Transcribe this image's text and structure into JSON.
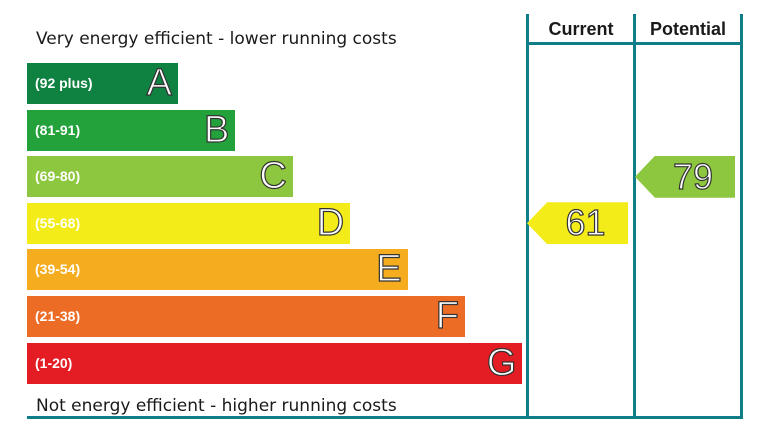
{
  "captions": {
    "top": "Very energy efficient - lower running costs",
    "bottom": "Not energy efficient - higher running costs"
  },
  "columns": {
    "current": "Current",
    "potential": "Potential"
  },
  "chart_data": {
    "type": "bar",
    "bands": [
      {
        "letter": "A",
        "range": "(92 plus)",
        "color": "#0f8140"
      },
      {
        "letter": "B",
        "range": "(81-91)",
        "color": "#23a23b"
      },
      {
        "letter": "C",
        "range": "(69-80)",
        "color": "#8dc63f"
      },
      {
        "letter": "D",
        "range": "(55-68)",
        "color": "#f3ec18"
      },
      {
        "letter": "E",
        "range": "(39-54)",
        "color": "#f5ac1f"
      },
      {
        "letter": "F",
        "range": "(21-38)",
        "color": "#ec6b25"
      },
      {
        "letter": "G",
        "range": "(1-20)",
        "color": "#e31d23"
      }
    ],
    "current": {
      "value": 61,
      "band": "D",
      "color": "#f3ec18"
    },
    "potential": {
      "value": 79,
      "band": "C",
      "color": "#8dc63f"
    }
  }
}
